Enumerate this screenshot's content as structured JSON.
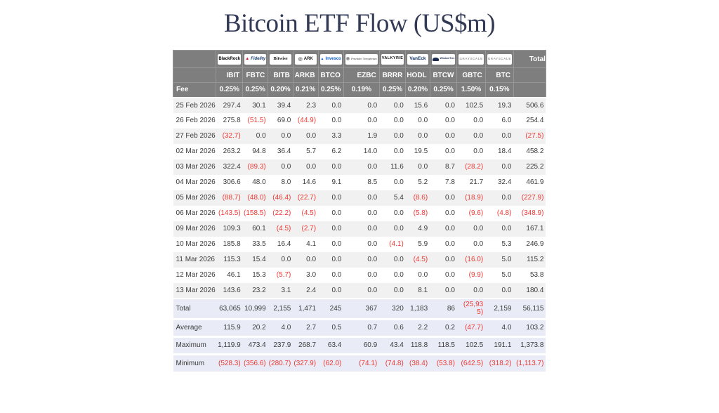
{
  "chart_data": {
    "type": "table",
    "title": "Bitcoin ETF Flow (US$m)",
    "fee_label": "Fee",
    "total_label": "Total",
    "columns": [
      {
        "provider": "BlackRock",
        "logo": "blackrock",
        "ticker": "IBIT",
        "fee": "0.25%"
      },
      {
        "provider": "Fidelity",
        "logo": "fidelity",
        "ticker": "FBTC",
        "fee": "0.25%"
      },
      {
        "provider": "Bitwise",
        "logo": "bitwise",
        "ticker": "BITB",
        "fee": "0.20%"
      },
      {
        "provider": "ARK",
        "logo": "ark",
        "ticker": "ARKB",
        "fee": "0.21%"
      },
      {
        "provider": "Invesco",
        "logo": "invesco",
        "ticker": "BTCO",
        "fee": "0.25%"
      },
      {
        "provider": "Franklin Templeton",
        "logo": "franklin",
        "ticker": "EZBC",
        "fee": "0.19%"
      },
      {
        "provider": "VALKYRIE",
        "logo": "valkyrie",
        "ticker": "BRRR",
        "fee": "0.25%"
      },
      {
        "provider": "VanEck",
        "logo": "vaneck",
        "ticker": "HODL",
        "fee": "0.20%"
      },
      {
        "provider": "WisdomTree",
        "logo": "wisdomtree",
        "ticker": "BTCW",
        "fee": "0.25%"
      },
      {
        "provider": "GRAYSCALE",
        "logo": "grayscale",
        "ticker": "GBTC",
        "fee": "1.50%"
      },
      {
        "provider": "GRAYSCALE",
        "logo": "grayscale",
        "ticker": "BTC",
        "fee": "0.15%"
      }
    ],
    "rows": [
      {
        "date": "25 Feb 2026",
        "values": [
          "297.4",
          "30.1",
          "39.4",
          "2.3",
          "0.0",
          "0.0",
          "0.0",
          "15.6",
          "0.0",
          "102.5",
          "19.3"
        ],
        "total": "506.6"
      },
      {
        "date": "26 Feb 2026",
        "values": [
          "275.8",
          "(51.5)",
          "69.0",
          "(44.9)",
          "0.0",
          "0.0",
          "0.0",
          "0.0",
          "0.0",
          "0.0",
          "6.0"
        ],
        "total": "254.4"
      },
      {
        "date": "27 Feb 2026",
        "values": [
          "(32.7)",
          "0.0",
          "0.0",
          "0.0",
          "3.3",
          "1.9",
          "0.0",
          "0.0",
          "0.0",
          "0.0",
          "0.0"
        ],
        "total": "(27.5)"
      },
      {
        "date": "02 Mar 2026",
        "values": [
          "263.2",
          "94.8",
          "36.4",
          "5.7",
          "6.2",
          "14.0",
          "0.0",
          "19.5",
          "0.0",
          "0.0",
          "18.4"
        ],
        "total": "458.2"
      },
      {
        "date": "03 Mar 2026",
        "values": [
          "322.4",
          "(89.3)",
          "0.0",
          "0.0",
          "0.0",
          "0.0",
          "11.6",
          "0.0",
          "8.7",
          "(28.2)",
          "0.0"
        ],
        "total": "225.2"
      },
      {
        "date": "04 Mar 2026",
        "values": [
          "306.6",
          "48.0",
          "8.0",
          "14.6",
          "9.1",
          "8.5",
          "0.0",
          "5.2",
          "7.8",
          "21.7",
          "32.4"
        ],
        "total": "461.9"
      },
      {
        "date": "05 Mar 2026",
        "values": [
          "(88.7)",
          "(48.0)",
          "(46.4)",
          "(22.7)",
          "0.0",
          "0.0",
          "5.4",
          "(8.6)",
          "0.0",
          "(18.9)",
          "0.0"
        ],
        "total": "(227.9)"
      },
      {
        "date": "06 Mar 2026",
        "values": [
          "(143.5)",
          "(158.5)",
          "(22.2)",
          "(4.5)",
          "0.0",
          "0.0",
          "0.0",
          "(5.8)",
          "0.0",
          "(9.6)",
          "(4.8)"
        ],
        "total": "(348.9)"
      },
      {
        "date": "09 Mar 2026",
        "values": [
          "109.3",
          "60.1",
          "(4.5)",
          "(2.7)",
          "0.0",
          "0.0",
          "0.0",
          "4.9",
          "0.0",
          "0.0",
          "0.0"
        ],
        "total": "167.1"
      },
      {
        "date": "10 Mar 2026",
        "values": [
          "185.8",
          "33.5",
          "16.4",
          "4.1",
          "0.0",
          "0.0",
          "(4.1)",
          "5.9",
          "0.0",
          "0.0",
          "5.3"
        ],
        "total": "246.9"
      },
      {
        "date": "11 Mar 2026",
        "values": [
          "115.3",
          "15.4",
          "0.0",
          "0.0",
          "0.0",
          "0.0",
          "0.0",
          "(4.5)",
          "0.0",
          "(16.0)",
          "5.0"
        ],
        "total": "115.2"
      },
      {
        "date": "12 Mar 2026",
        "values": [
          "46.1",
          "15.3",
          "(5.7)",
          "3.0",
          "0.0",
          "0.0",
          "0.0",
          "0.0",
          "0.0",
          "(9.9)",
          "5.0"
        ],
        "total": "53.8"
      },
      {
        "date": "13 Mar 2026",
        "values": [
          "143.6",
          "23.2",
          "3.1",
          "2.4",
          "0.0",
          "0.0",
          "0.0",
          "8.1",
          "0.0",
          "0.0",
          "0.0"
        ],
        "total": "180.4"
      }
    ],
    "summary": [
      {
        "label": "Total",
        "values": [
          "63,065",
          "10,999",
          "2,155",
          "1,471",
          "245",
          "367",
          "320",
          "1,183",
          "86",
          "(25,935)",
          "2,159"
        ],
        "total": "56,115"
      },
      {
        "label": "Average",
        "values": [
          "115.9",
          "20.2",
          "4.0",
          "2.7",
          "0.5",
          "0.7",
          "0.6",
          "2.2",
          "0.2",
          "(47.7)",
          "4.0"
        ],
        "total": "103.2"
      },
      {
        "label": "Maximum",
        "values": [
          "1,119.9",
          "473.4",
          "237.9",
          "268.7",
          "63.4",
          "60.9",
          "43.4",
          "118.8",
          "118.5",
          "102.5",
          "191.1"
        ],
        "total": "1,373.8"
      },
      {
        "label": "Minimum",
        "values": [
          "(528.3)",
          "(356.6)",
          "(280.7)",
          "(327.9)",
          "(62.0)",
          "(74.1)",
          "(74.8)",
          "(38.4)",
          "(53.8)",
          "(642.5)",
          "(318.2)"
        ],
        "total": "(1,113.7)"
      }
    ]
  },
  "colors": {
    "title": "#333a55",
    "header_bg": "#7e7e7e",
    "negative": "#ef3934",
    "row_stripe": "#f1f1f2",
    "summary_bg": "#e9ecf6"
  }
}
